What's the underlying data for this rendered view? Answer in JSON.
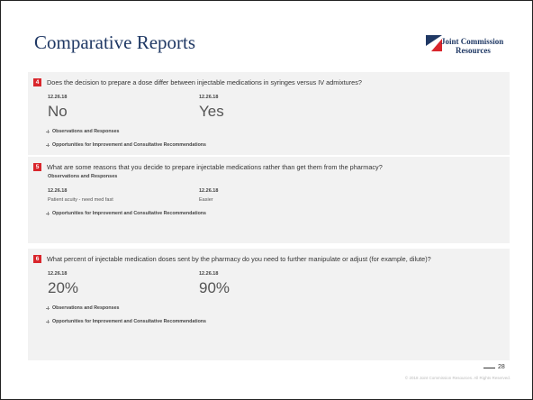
{
  "header": {
    "title": "Comparative Reports",
    "logo": [
      "Joint Commission",
      "Resources"
    ]
  },
  "questions": [
    {
      "number": "4",
      "text": "Does the decision to prepare a dose differ between injectable medications in syringes versus IV admixtures?",
      "columns": [
        {
          "date": "12.26.18",
          "answer": "No"
        },
        {
          "date": "12.26.18",
          "answer": "Yes"
        }
      ],
      "links": [
        "Observations and Responses",
        "Opportunities for Improvement and Consultative Recommendations"
      ]
    },
    {
      "number": "5",
      "text": "What are some reasons that you decide to prepare injectable medications rather than get them from the pharmacy?",
      "heading": "Observations and Responses",
      "columns": [
        {
          "date": "12.26.18",
          "answer": "Patient acuity - need med fast"
        },
        {
          "date": "12.26.18",
          "answer": "Easier"
        }
      ],
      "links": [
        "Opportunities for Improvement and Consultative Recommendations"
      ]
    },
    {
      "number": "6",
      "text": "What percent of injectable medication doses sent by the pharmacy do you need to further manipulate or adjust (for example, dilute)?",
      "columns": [
        {
          "date": "12.26.18",
          "answer": "20%"
        },
        {
          "date": "12.26.18",
          "answer": "90%"
        }
      ],
      "links": [
        "Observations and Responses",
        "Opportunities for Improvement and Consultative Recommendations"
      ]
    }
  ],
  "footer": {
    "page": "28",
    "copyright": "© 2018 Joint Commission Resources. All Rights Reserved."
  }
}
